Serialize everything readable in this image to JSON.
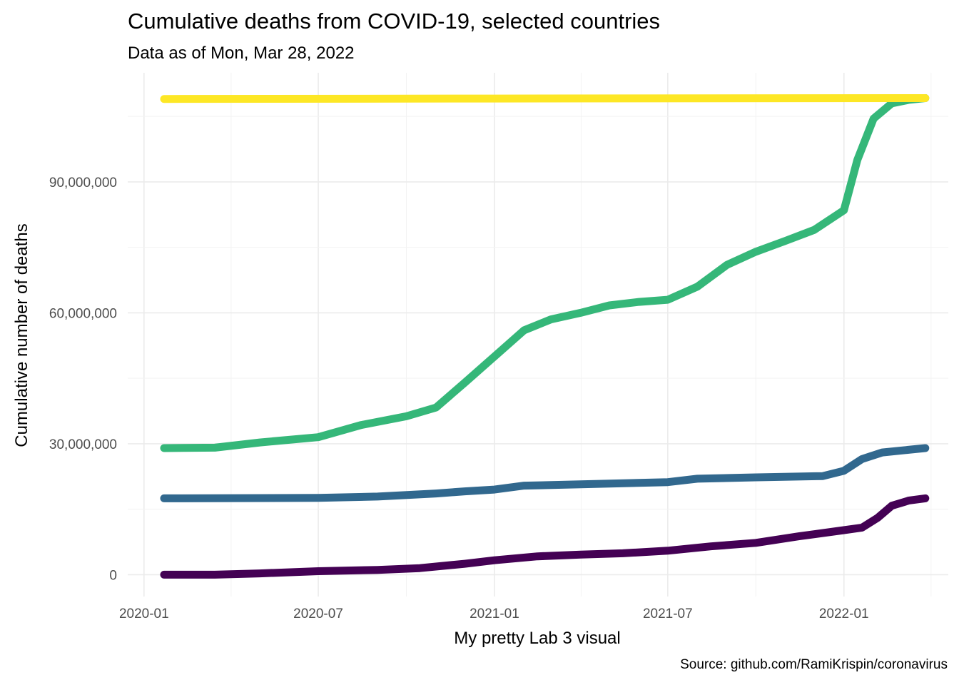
{
  "chart_data": {
    "type": "line",
    "title": "Cumulative deaths from COVID-19, selected countries",
    "subtitle": "Data as of Mon, Mar 28, 2022",
    "xlabel": "My pretty Lab 3 visual",
    "ylabel": "Cumulative number of deaths",
    "caption": "Source: github.com/RamiKrispin/coronavirus",
    "x_ticks": [
      "2020-01",
      "2020-07",
      "2021-01",
      "2021-07",
      "2022-01"
    ],
    "y_ticks": [
      "0",
      "30,000,000",
      "60,000,000",
      "90,000,000"
    ],
    "xlim": [
      "2019-12-15",
      "2022-04-20"
    ],
    "ylim": [
      -5000000,
      115000000
    ],
    "grid": true,
    "legend": "none",
    "series": [
      {
        "color": "#440154",
        "points": [
          [
            "2020-01-22",
            0
          ],
          [
            "2020-03-15",
            0
          ],
          [
            "2020-05-01",
            300000
          ],
          [
            "2020-07-01",
            800000
          ],
          [
            "2020-09-01",
            1100000
          ],
          [
            "2020-10-15",
            1500000
          ],
          [
            "2020-12-01",
            2500000
          ],
          [
            "2021-01-01",
            3300000
          ],
          [
            "2021-02-15",
            4200000
          ],
          [
            "2021-04-01",
            4600000
          ],
          [
            "2021-05-15",
            4900000
          ],
          [
            "2021-07-01",
            5500000
          ],
          [
            "2021-08-15",
            6500000
          ],
          [
            "2021-10-01",
            7300000
          ],
          [
            "2021-11-15",
            8800000
          ],
          [
            "2022-01-01",
            10200000
          ],
          [
            "2022-01-20",
            10800000
          ],
          [
            "2022-02-05",
            13000000
          ],
          [
            "2022-02-20",
            15800000
          ],
          [
            "2022-03-10",
            17000000
          ],
          [
            "2022-03-27",
            17500000
          ]
        ]
      },
      {
        "color": "#31688e",
        "points": [
          [
            "2020-01-22",
            17500000
          ],
          [
            "2020-07-01",
            17600000
          ],
          [
            "2020-09-01",
            17900000
          ],
          [
            "2020-11-01",
            18600000
          ],
          [
            "2020-12-01",
            19100000
          ],
          [
            "2021-01-01",
            19500000
          ],
          [
            "2021-02-01",
            20400000
          ],
          [
            "2021-04-01",
            20700000
          ],
          [
            "2021-07-01",
            21200000
          ],
          [
            "2021-08-01",
            22000000
          ],
          [
            "2021-10-01",
            22300000
          ],
          [
            "2021-12-10",
            22600000
          ],
          [
            "2022-01-01",
            23800000
          ],
          [
            "2022-01-20",
            26500000
          ],
          [
            "2022-02-10",
            28000000
          ],
          [
            "2022-03-27",
            29000000
          ]
        ]
      },
      {
        "color": "#35b779",
        "points": [
          [
            "2020-01-22",
            29000000
          ],
          [
            "2020-03-15",
            29100000
          ],
          [
            "2020-05-01",
            30300000
          ],
          [
            "2020-07-01",
            31500000
          ],
          [
            "2020-08-15",
            34300000
          ],
          [
            "2020-10-01",
            36300000
          ],
          [
            "2020-11-01",
            38300000
          ],
          [
            "2020-12-01",
            44000000
          ],
          [
            "2021-01-01",
            50000000
          ],
          [
            "2021-02-01",
            56000000
          ],
          [
            "2021-03-01",
            58500000
          ],
          [
            "2021-04-01",
            60000000
          ],
          [
            "2021-05-01",
            61700000
          ],
          [
            "2021-06-01",
            62500000
          ],
          [
            "2021-07-01",
            63000000
          ],
          [
            "2021-08-01",
            66000000
          ],
          [
            "2021-09-01",
            71000000
          ],
          [
            "2021-10-01",
            74000000
          ],
          [
            "2021-11-01",
            76500000
          ],
          [
            "2021-12-01",
            79000000
          ],
          [
            "2022-01-01",
            83500000
          ],
          [
            "2022-01-15",
            95000000
          ],
          [
            "2022-02-01",
            104500000
          ],
          [
            "2022-02-20",
            108000000
          ],
          [
            "2022-03-10",
            108800000
          ],
          [
            "2022-03-27",
            109200000
          ]
        ]
      },
      {
        "color": "#fde725",
        "points": [
          [
            "2020-01-22",
            109000000
          ],
          [
            "2021-01-01",
            109100000
          ],
          [
            "2022-03-27",
            109200000
          ]
        ]
      }
    ]
  }
}
